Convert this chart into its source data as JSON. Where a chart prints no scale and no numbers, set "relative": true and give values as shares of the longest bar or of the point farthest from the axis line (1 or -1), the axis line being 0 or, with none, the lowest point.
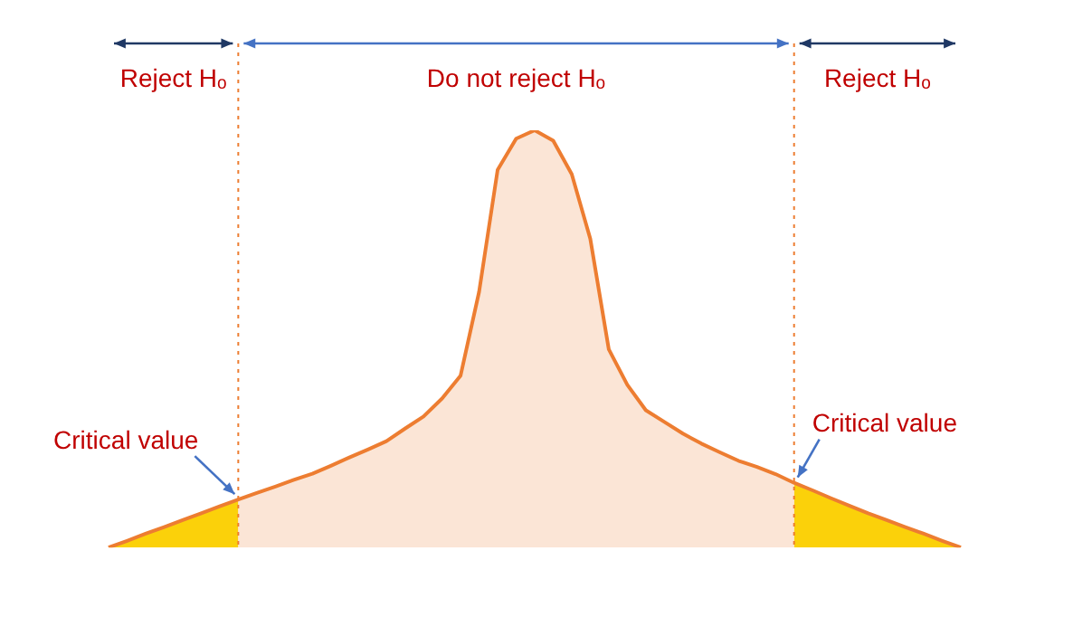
{
  "chart_data": {
    "type": "area",
    "relative": true,
    "legend": false,
    "categories": [
      null,
      null,
      null,
      null,
      null,
      null,
      null,
      null,
      null,
      null,
      null,
      null,
      null,
      null,
      null,
      null,
      null,
      null,
      null,
      null,
      null,
      null,
      null,
      null,
      null,
      null,
      null,
      null,
      null,
      null,
      null,
      null,
      null,
      null,
      null,
      null,
      null,
      null,
      null,
      null,
      null,
      null,
      null,
      null,
      null,
      null,
      null
    ],
    "series": [
      {
        "color": "#ed7d31",
        "values": [
          0,
          0.016,
          0.033,
          0.049,
          0.066,
          0.082,
          0.099,
          0.115,
          0.131,
          0.146,
          0.162,
          0.177,
          0.196,
          0.216,
          0.235,
          0.255,
          0.285,
          0.314,
          0.357,
          0.412,
          0.613,
          0.905,
          0.98,
          1,
          0.975,
          0.895,
          0.74,
          0.475,
          0.39,
          0.329,
          0.301,
          0.273,
          0.249,
          0.228,
          0.208,
          0.193,
          0.176,
          0.155,
          0.137,
          0.118,
          0.1,
          0.082,
          0.066,
          0.049,
          0.033,
          0.016,
          0
        ]
      },
      {
        "color": "#ffe600",
        "values": [
          0,
          0.016,
          0.033,
          0.049,
          0.066,
          0.082,
          0.099,
          0.115,
          null,
          null,
          null,
          null,
          null,
          null,
          null,
          null,
          null,
          null,
          null,
          null,
          null,
          null,
          null,
          null,
          null,
          null,
          null,
          null,
          null,
          null,
          null,
          null,
          null,
          null,
          null,
          null,
          null,
          0.155,
          0.137,
          0.118,
          0.1,
          0.082,
          0.066,
          0.049,
          0.033,
          0.016,
          0
        ]
      }
    ],
    "annotations": [
      "Reject Hₒ",
      "Do not reject Hₒ",
      "Reject Hₒ",
      "Critical value",
      "Critical value"
    ]
  }
}
